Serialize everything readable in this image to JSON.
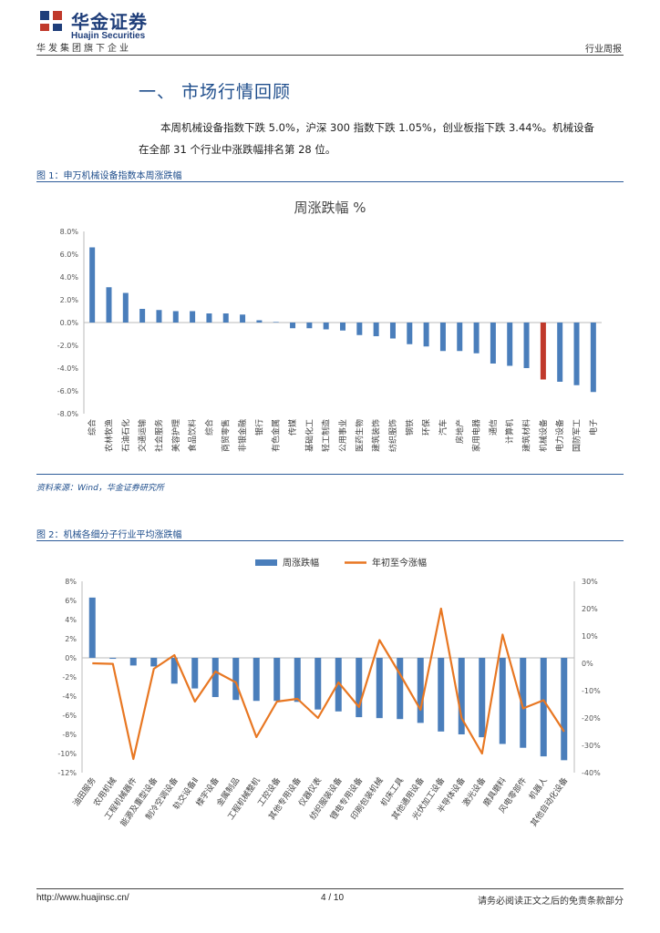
{
  "header": {
    "company_cn": "华金证券",
    "company_en": "Huajin Securities",
    "subtitle": "华发集团旗下企业",
    "report_type": "行业周报"
  },
  "section": {
    "title": "一、 市场行情回顾",
    "para_line1": "本周机械设备指数下跌 5.0%，沪深 300 指数下跌 1.05%，创业板指下跌 3.44%。机械设备",
    "para_line2": "在全部 31 个行业中涨跌幅排名第 28 位。"
  },
  "figure1": {
    "caption": "图 1：申万机械设备指数本周涨跌幅",
    "source": "资料来源：Wind，华金证券研究所"
  },
  "figure2": {
    "caption": "图 2：机械各细分子行业平均涨跌幅"
  },
  "footer": {
    "url": "http://www.huajinsc.cn/",
    "page": "4 / 10",
    "disclaimer": "请务必阅读正文之后的免责条款部分"
  },
  "colors": {
    "brand": "#1f3e7a",
    "bar": "#4a7ebb",
    "highlight": "#c0392b",
    "line": "#e87722"
  },
  "chart_data": [
    {
      "type": "bar",
      "title": "周涨跌幅 %",
      "categories": [
        "综合",
        "农林牧渔",
        "石油石化",
        "交通运输",
        "社会服务",
        "美容护理",
        "食品饮料",
        "综合",
        "商贸零售",
        "非银金融",
        "银行",
        "有色金属",
        "传媒",
        "基础化工",
        "轻工制造",
        "公用事业",
        "医药生物",
        "建筑装饰",
        "纺织服饰",
        "钢铁",
        "环保",
        "汽车",
        "房地产",
        "家用电器",
        "通信",
        "计算机",
        "建筑材料",
        "机械设备",
        "电力设备",
        "国防军工",
        "电子"
      ],
      "values": [
        6.6,
        3.1,
        2.6,
        1.2,
        1.1,
        1.0,
        1.0,
        0.8,
        0.8,
        0.7,
        0.2,
        0.05,
        -0.5,
        -0.5,
        -0.6,
        -0.7,
        -1.1,
        -1.2,
        -1.4,
        -1.9,
        -2.1,
        -2.5,
        -2.5,
        -2.7,
        -3.6,
        -3.8,
        -4.0,
        -5.0,
        -5.2,
        -5.5,
        -6.1
      ],
      "highlight": "机械设备",
      "yticks": [
        "8.0%",
        "6.0%",
        "4.0%",
        "2.0%",
        "0.0%",
        "-2.0%",
        "-4.0%",
        "-6.0%",
        "-8.0%"
      ],
      "ylim": [
        -8,
        8
      ]
    },
    {
      "type": "bar+line",
      "legend": [
        "周涨跌幅",
        "年初至今涨幅"
      ],
      "categories": [
        "油田服务",
        "农用机械",
        "工程机械器件",
        "能源及重型设备",
        "制冷空调设备",
        "轨交设备Ⅱ",
        "楼宇设备",
        "金属制品",
        "工程机械整机",
        "工控设备",
        "其他专用设备",
        "仪器仪表",
        "纺织服装设备",
        "锂电专用设备",
        "印刷包装机械",
        "机床工具",
        "其他通用设备",
        "光伏加工设备",
        "半导体设备",
        "激光设备",
        "磨具磨料",
        "风电零部件",
        "机器人",
        "其他自动化设备"
      ],
      "weekly": [
        6.3,
        -0.1,
        -0.8,
        -0.9,
        -2.7,
        -3.2,
        -4.1,
        -4.4,
        -4.5,
        -4.5,
        -4.6,
        -5.4,
        -5.6,
        -6.2,
        -6.3,
        -6.4,
        -6.8,
        -7.7,
        -8.0,
        -8.3,
        -9.0,
        -9.4,
        -10.3,
        -10.7
      ],
      "ytd": [
        0,
        -0.2,
        -35,
        -2,
        3,
        -14,
        -3,
        -7,
        -27,
        -14,
        -13,
        -20,
        -7,
        -16,
        8.5,
        -4,
        -17,
        20,
        -20,
        -33,
        10.5,
        -16.5,
        -13.5,
        -25
      ],
      "yleft_ticks": [
        "8%",
        "6%",
        "4%",
        "2%",
        "0%",
        "-2%",
        "-4%",
        "-6%",
        "-8%",
        "-10%",
        "-12%"
      ],
      "yright_ticks": [
        "30%",
        "20%",
        "10%",
        "0%",
        "-10%",
        "-20%",
        "-30%",
        "-40%"
      ],
      "ylim_left": [
        -12,
        8
      ],
      "ylim_right": [
        -40,
        30
      ]
    }
  ]
}
